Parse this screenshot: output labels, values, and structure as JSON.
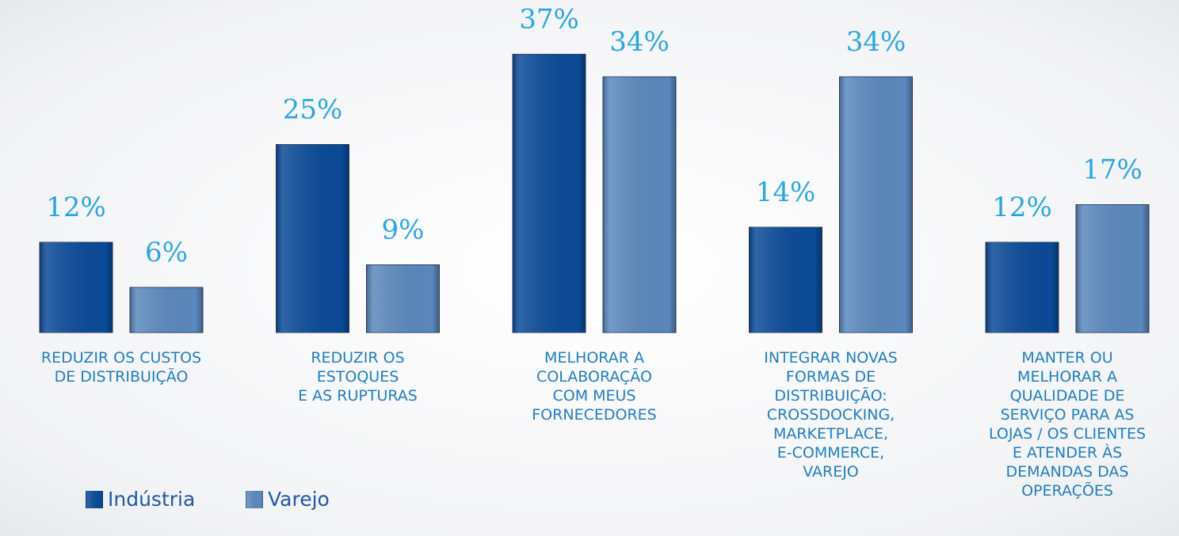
{
  "chart_data": {
    "type": "bar",
    "categories": [
      "REDUZIR OS CUSTOS\nDE DISTRIBUIÇÃO",
      "REDUZIR OS\nESTOQUES\nE AS RUPTURAS",
      "MELHORAR A\nCOLABORAÇÃO\nCOM MEUS\nFORNECEDORES",
      "INTEGRAR NOVAS\nFORMAS DE\nDISTRIBUIÇÃO:\nCROSSDOCKING,\nMARKETPLACE,\nE-COMMERCE,\nVAREJO",
      "MANTER OU\nMELHORAR A\nQUALIDADE DE\nSERVIÇO PARA AS\nLOJAS / OS CLIENTES\nE ATENDER ÀS\nDEMANDAS DAS\nOPERAÇÕES"
    ],
    "series": [
      {
        "name": "Indústria",
        "color": "#0b4a98",
        "values": [
          12,
          25,
          37,
          14,
          12
        ],
        "value_labels": [
          "12%",
          "25%",
          "37%",
          "14%",
          "12%"
        ]
      },
      {
        "name": "Varejo",
        "color": "#5b88bd",
        "values": [
          6,
          9,
          34,
          34,
          17
        ],
        "value_labels": [
          "6%",
          "9%",
          "34%",
          "34%",
          "17%"
        ]
      }
    ]
  }
}
